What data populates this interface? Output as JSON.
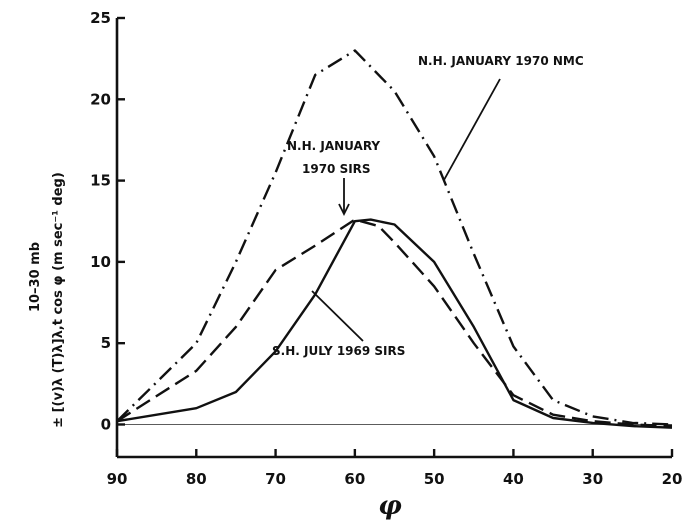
{
  "chart_data": {
    "type": "line",
    "xlabel": "φ",
    "ylabel_top": "10–30 mb",
    "ylabel_bottom": "± [(v)λ (T)λ]λ,t cos φ  (m sec⁻¹ deg)",
    "xlim": [
      90,
      20
    ],
    "ylim": [
      -2,
      25
    ],
    "xticks": [
      90,
      80,
      70,
      60,
      50,
      40,
      30,
      20
    ],
    "yticks": [
      0,
      5,
      10,
      15,
      20,
      25
    ],
    "ytick_labels": [
      "0",
      "5",
      "10",
      "15",
      "20",
      "25"
    ],
    "grid": false,
    "series": [
      {
        "style": "dash-dot",
        "x": [
          90,
          80,
          75,
          70,
          65,
          60,
          55,
          50,
          45,
          40,
          35,
          30,
          25,
          20
        ],
        "y": [
          0.2,
          5.0,
          10.0,
          15.5,
          21.5,
          23.0,
          20.5,
          16.5,
          10.5,
          4.8,
          1.5,
          0.5,
          0.1,
          0.0
        ]
      },
      {
        "style": "dashed",
        "x": [
          90,
          80,
          75,
          70,
          65,
          60,
          57,
          55,
          50,
          45,
          40,
          35,
          30,
          25,
          20
        ],
        "y": [
          0.2,
          3.3,
          6.0,
          9.5,
          11.0,
          12.6,
          12.2,
          11.2,
          8.5,
          5.0,
          1.8,
          0.6,
          0.2,
          0.0,
          -0.1
        ]
      },
      {
        "style": "solid",
        "x": [
          90,
          80,
          75,
          70,
          65,
          60,
          58,
          55,
          50,
          45,
          40,
          35,
          30,
          25,
          20
        ],
        "y": [
          0.2,
          1.0,
          2.0,
          4.5,
          8.0,
          12.5,
          12.6,
          12.3,
          10.0,
          6.0,
          1.5,
          0.4,
          0.1,
          -0.1,
          -0.2
        ]
      }
    ],
    "annotations": [
      {
        "id": "nmc",
        "text": "N.H. JANUARY 1970 NMC"
      },
      {
        "id": "sirs_n_1",
        "text": "N.H. JANUARY"
      },
      {
        "id": "sirs_n_2",
        "text": "1970 SIRS"
      },
      {
        "id": "sirs_s",
        "text": "S.H. JULY 1969 SIRS"
      }
    ]
  }
}
